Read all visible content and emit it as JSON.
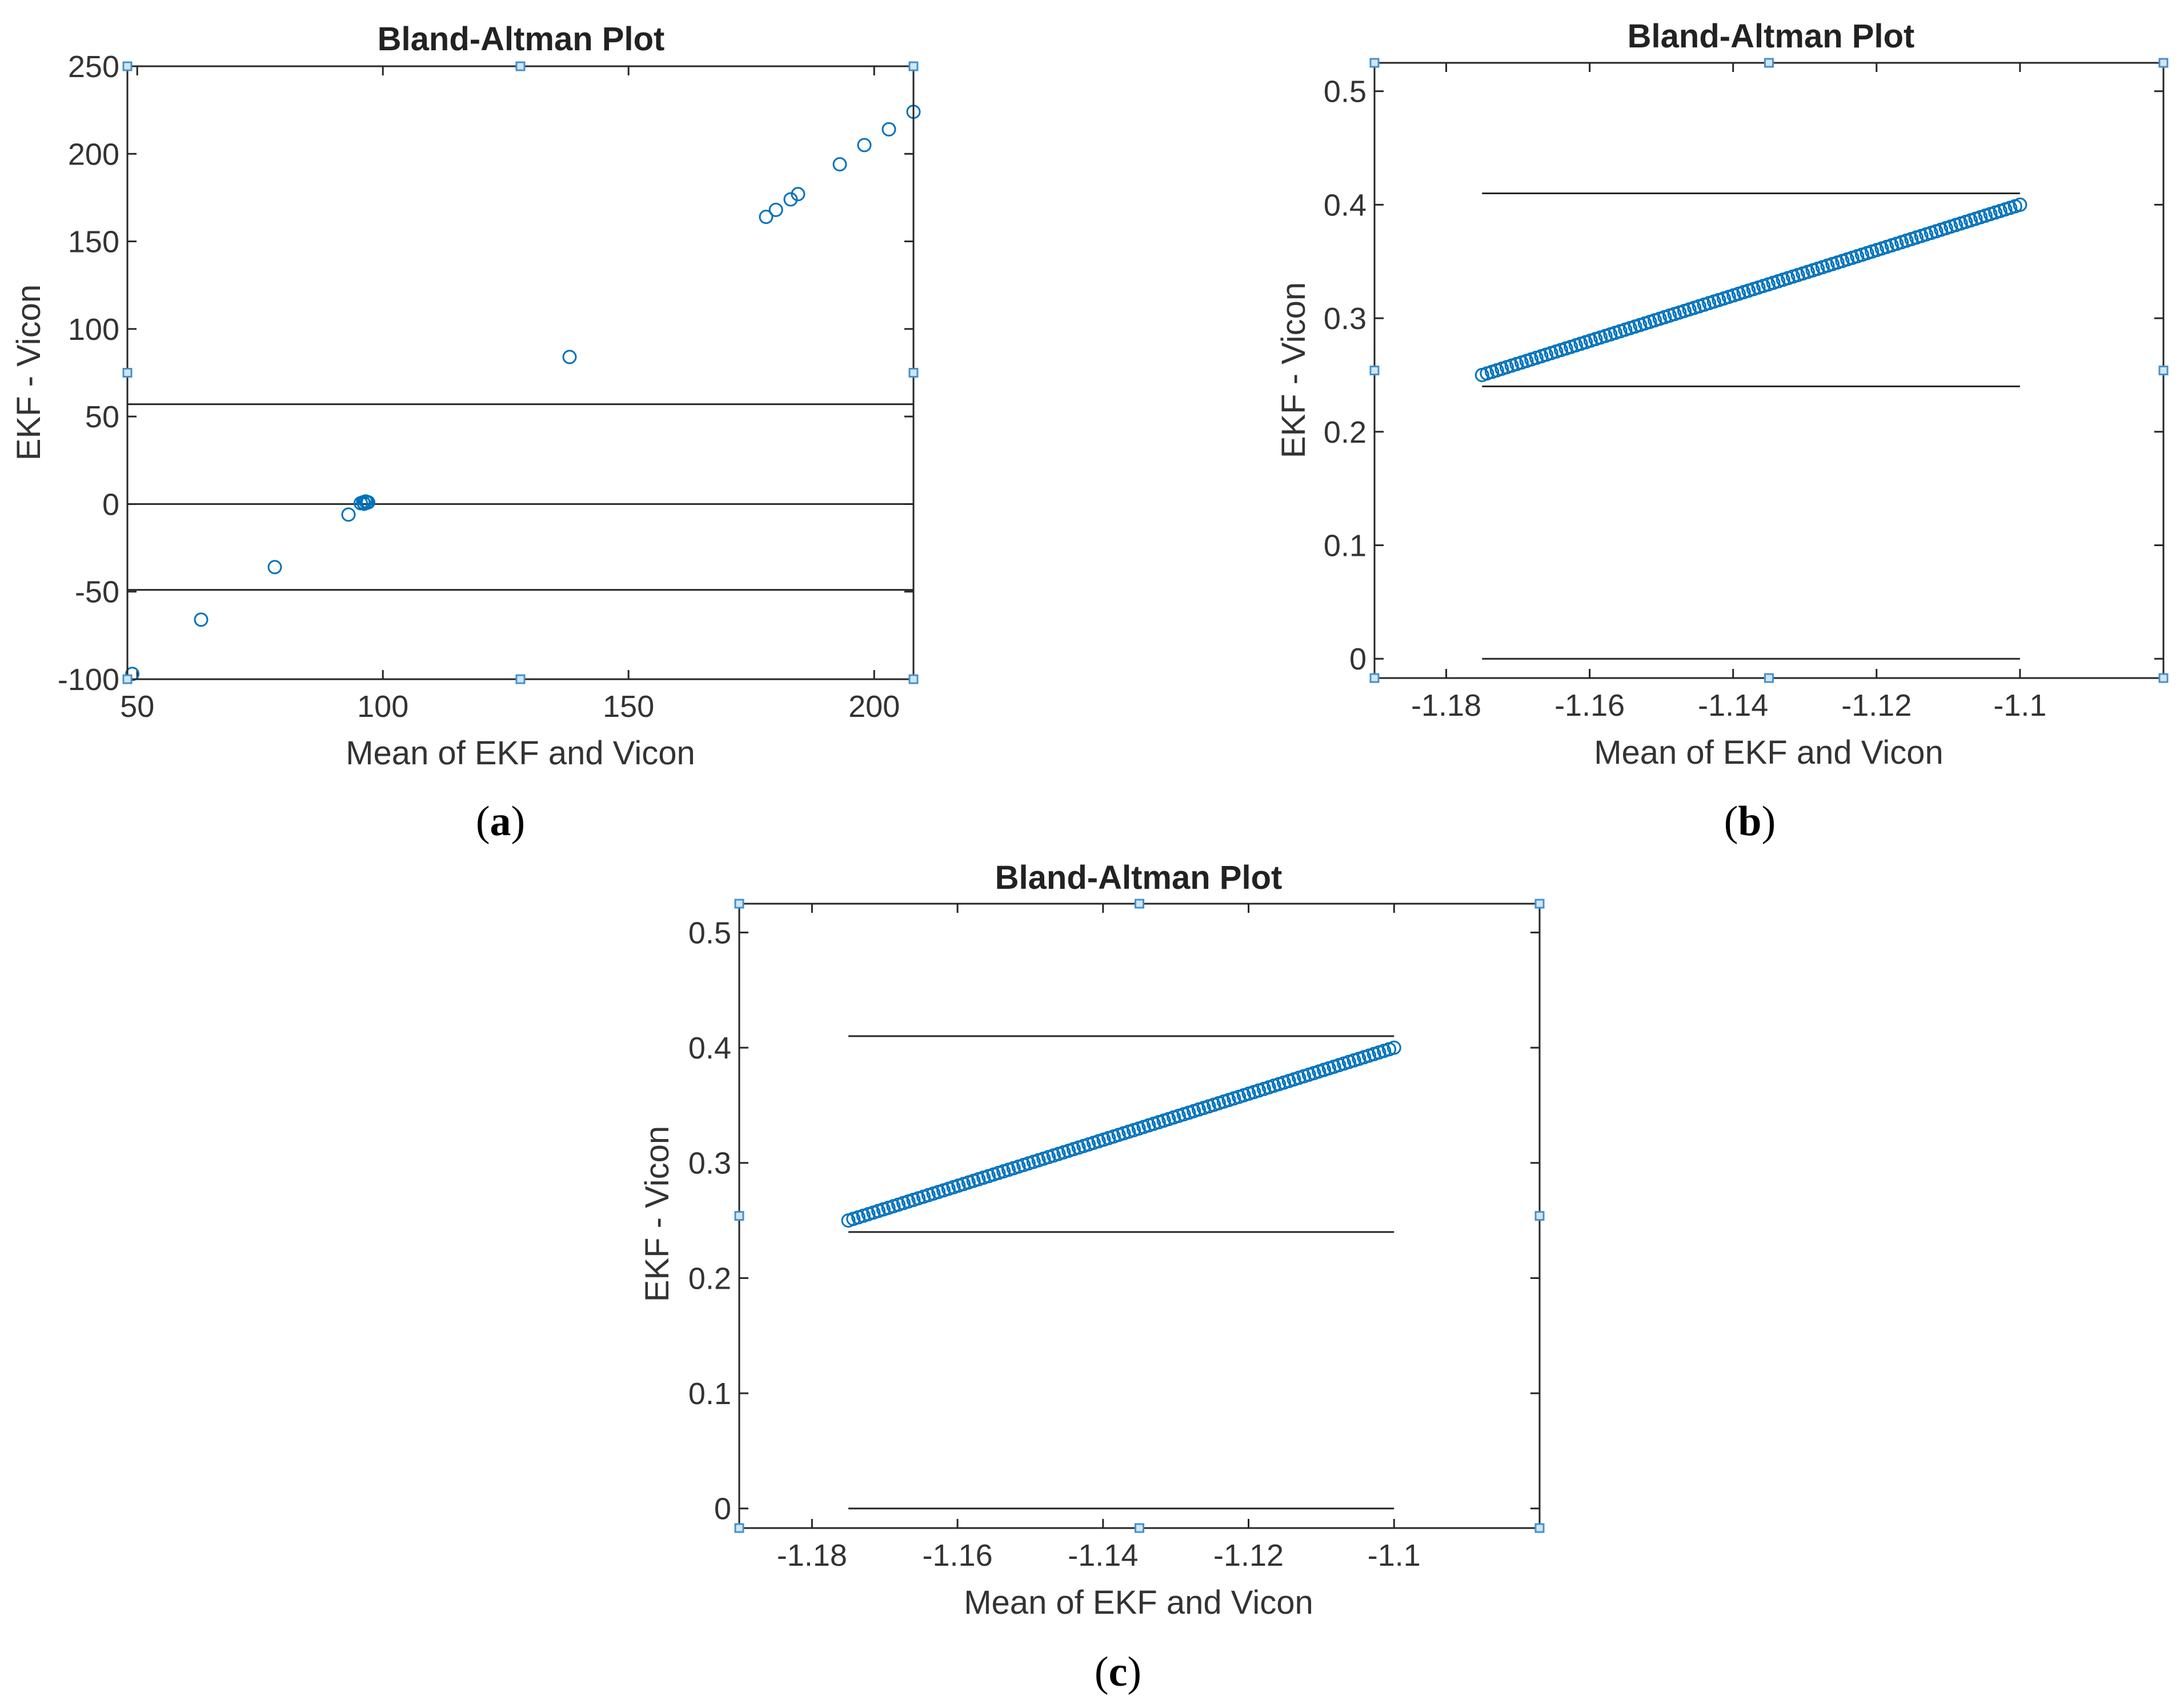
{
  "colors": {
    "marker": "#0072BD",
    "handle": "#4a90c8",
    "axis": "#262626"
  },
  "chart_data": [
    {
      "panel": "(a)",
      "type": "scatter",
      "title": "Bland-Altman Plot",
      "xlabel": "Mean of EKF and Vicon",
      "ylabel": "EKF - Vicon",
      "xlim": [
        48,
        208
      ],
      "ylim": [
        -100,
        250
      ],
      "xticks": [
        50,
        100,
        150,
        200
      ],
      "yticks": [
        -100,
        -50,
        0,
        50,
        100,
        150,
        200,
        250
      ],
      "xtick_labels": [
        "50",
        "100",
        "150",
        "200"
      ],
      "ytick_labels": [
        "-100",
        "-50",
        "0",
        "50",
        "100",
        "150",
        "200",
        "250"
      ],
      "reference_lines": [
        57,
        0,
        -49
      ],
      "points": [
        [
          49,
          -97
        ],
        [
          63,
          -66
        ],
        [
          78,
          -36
        ],
        [
          93,
          -6
        ],
        [
          95.5,
          0.5
        ],
        [
          96,
          1
        ],
        [
          96.5,
          1.5
        ],
        [
          97,
          1
        ],
        [
          96.2,
          0.2
        ],
        [
          96.8,
          0.8
        ],
        [
          138,
          84
        ],
        [
          178,
          164
        ],
        [
          180,
          168
        ],
        [
          183,
          174
        ],
        [
          184.5,
          177
        ],
        [
          193,
          194
        ],
        [
          198,
          205
        ],
        [
          203,
          214
        ],
        [
          208,
          224
        ]
      ]
    },
    {
      "panel": "(b)",
      "type": "scatter",
      "title": "Bland-Altman Plot",
      "xlabel": "Mean of EKF and Vicon",
      "ylabel": "EKF - Vicon",
      "xlim": [
        -1.19,
        -1.08
      ],
      "ylim": [
        -0.017,
        0.525
      ],
      "xticks": [
        -1.18,
        -1.16,
        -1.14,
        -1.12,
        -1.1
      ],
      "yticks": [
        0,
        0.1,
        0.2,
        0.3,
        0.4,
        0.5
      ],
      "xtick_labels": [
        "-1.18",
        "-1.16",
        "-1.14",
        "-1.12",
        "-1.1"
      ],
      "ytick_labels": [
        "0",
        "0.1",
        "0.2",
        "0.3",
        "0.4",
        "0.5"
      ],
      "reference_lines": [
        0.41,
        0.24,
        0
      ],
      "reference_x_range": [
        -1.175,
        -1.1
      ],
      "line_points": {
        "x_start": -1.175,
        "y_start": 0.25,
        "x_end": -1.1,
        "y_end": 0.4,
        "count": 110
      }
    },
    {
      "panel": "(c)",
      "type": "scatter",
      "title": "Bland-Altman Plot",
      "xlabel": "Mean of EKF and Vicon",
      "ylabel": "EKF - Vicon",
      "xlim": [
        -1.19,
        -1.08
      ],
      "ylim": [
        -0.017,
        0.525
      ],
      "xticks": [
        -1.18,
        -1.16,
        -1.14,
        -1.12,
        -1.1
      ],
      "yticks": [
        0,
        0.1,
        0.2,
        0.3,
        0.4,
        0.5
      ],
      "xtick_labels": [
        "-1.18",
        "-1.16",
        "-1.14",
        "-1.12",
        "-1.1"
      ],
      "ytick_labels": [
        "0",
        "0.1",
        "0.2",
        "0.3",
        "0.4",
        "0.5"
      ],
      "reference_lines": [
        0.41,
        0.24,
        0
      ],
      "reference_x_range": [
        -1.175,
        -1.1
      ],
      "line_points": {
        "x_start": -1.175,
        "y_start": 0.25,
        "x_end": -1.1,
        "y_end": 0.4,
        "count": 110
      }
    }
  ]
}
